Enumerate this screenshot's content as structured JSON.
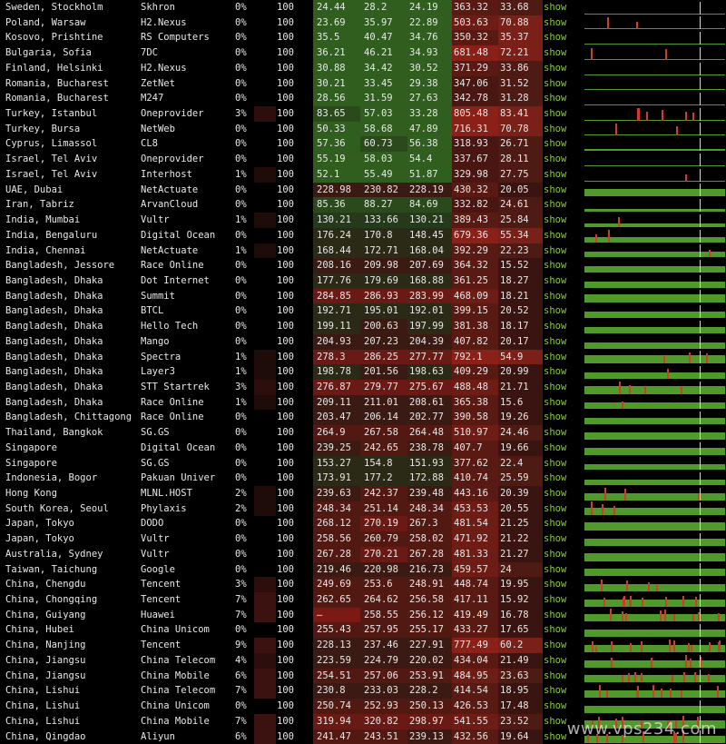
{
  "colors": {
    "show_link": "#8ccc3a",
    "graph_green": "#4f9a2a",
    "spike_red": "#d23a2a",
    "spike_yellow": "#e8d8a0"
  },
  "watermark": "www.vps234.com",
  "rows": [
    {
      "location": "Sweden, Stockholm",
      "isp": "Skhron",
      "loss": "0%",
      "sent": "100",
      "last": "24.44",
      "avg": "28.2",
      "best": "24.19",
      "worst": "363.32",
      "stdev": "33.68",
      "show": "show",
      "graph_level": 0.05
    },
    {
      "location": "Poland, Warsaw",
      "isp": "H2.Nexus",
      "loss": "0%",
      "sent": "100",
      "last": "23.69",
      "avg": "35.97",
      "best": "22.89",
      "worst": "503.63",
      "stdev": "70.88",
      "show": "show",
      "graph_level": 0.05
    },
    {
      "location": "Kosovo, Prishtine",
      "isp": "RS Computers",
      "loss": "0%",
      "sent": "100",
      "last": "35.5",
      "avg": "40.47",
      "best": "34.76",
      "worst": "350.32",
      "stdev": "35.37",
      "show": "show",
      "graph_level": 0.07
    },
    {
      "location": "Bulgaria, Sofia",
      "isp": "7DC",
      "loss": "0%",
      "sent": "100",
      "last": "36.21",
      "avg": "46.21",
      "best": "34.93",
      "worst": "681.48",
      "stdev": "72.21",
      "show": "show",
      "graph_level": 0.07
    },
    {
      "location": "Finland, Helsinki",
      "isp": "H2.Nexus",
      "loss": "0%",
      "sent": "100",
      "last": "30.88",
      "avg": "34.42",
      "best": "30.52",
      "worst": "371.29",
      "stdev": "33.86",
      "show": "show",
      "graph_level": 0.06
    },
    {
      "location": "Romania, Bucharest",
      "isp": "ZetNet",
      "loss": "0%",
      "sent": "100",
      "last": "30.21",
      "avg": "33.45",
      "best": "29.38",
      "worst": "347.06",
      "stdev": "31.52",
      "show": "show",
      "graph_level": 0.06
    },
    {
      "location": "Romania, Bucharest",
      "isp": "M247",
      "loss": "0%",
      "sent": "100",
      "last": "28.56",
      "avg": "31.59",
      "best": "27.63",
      "worst": "342.78",
      "stdev": "31.28",
      "show": "show",
      "graph_level": 0.06
    },
    {
      "location": "Turkey, Istanbul",
      "isp": "Oneprovider",
      "loss": "3%",
      "sent": "100",
      "last": "83.65",
      "avg": "57.03",
      "best": "33.28",
      "worst": "805.48",
      "stdev": "83.41",
      "show": "show",
      "graph_level": 0.1
    },
    {
      "location": "Turkey, Bursa",
      "isp": "NetWeb",
      "loss": "0%",
      "sent": "100",
      "last": "50.33",
      "avg": "58.68",
      "best": "47.89",
      "worst": "716.31",
      "stdev": "70.78",
      "show": "show",
      "graph_level": 0.1
    },
    {
      "location": "Cyprus, Limassol",
      "isp": "CL8",
      "loss": "0%",
      "sent": "100",
      "last": "57.36",
      "avg": "60.73",
      "best": "56.38",
      "worst": "318.93",
      "stdev": "26.71",
      "show": "show",
      "graph_level": 0.11
    },
    {
      "location": "Israel, Tel Aviv",
      "isp": "Oneprovider",
      "loss": "0%",
      "sent": "100",
      "last": "55.19",
      "avg": "58.03",
      "best": "54.4",
      "worst": "337.67",
      "stdev": "28.11",
      "show": "show",
      "graph_level": 0.1
    },
    {
      "location": "Israel, Tel Aviv",
      "isp": "Interhost",
      "loss": "1%",
      "sent": "100",
      "last": "52.1",
      "avg": "55.49",
      "best": "51.87",
      "worst": "329.98",
      "stdev": "27.75",
      "show": "show",
      "graph_level": 0.1
    },
    {
      "location": "UAE, Dubai",
      "isp": "NetActuate",
      "loss": "0%",
      "sent": "100",
      "last": "228.98",
      "avg": "230.82",
      "best": "228.19",
      "worst": "430.32",
      "stdev": "20.05",
      "show": "show",
      "graph_level": 0.55
    },
    {
      "location": "Iran, Tabriz",
      "isp": "ArvanCloud",
      "loss": "0%",
      "sent": "100",
      "last": "85.36",
      "avg": "88.27",
      "best": "84.69",
      "worst": "332.82",
      "stdev": "24.61",
      "show": "show",
      "graph_level": 0.18
    },
    {
      "location": "India, Mumbai",
      "isp": "Vultr",
      "loss": "1%",
      "sent": "100",
      "last": "130.21",
      "avg": "133.66",
      "best": "130.21",
      "worst": "389.43",
      "stdev": "25.84",
      "show": "show",
      "graph_level": 0.3
    },
    {
      "location": "India, Bengaluru",
      "isp": "Digital Ocean",
      "loss": "0%",
      "sent": "100",
      "last": "176.24",
      "avg": "170.8",
      "best": "148.45",
      "worst": "679.36",
      "stdev": "55.34",
      "show": "show",
      "graph_level": 0.4
    },
    {
      "location": "India, Chennai",
      "isp": "NetActuate",
      "loss": "1%",
      "sent": "100",
      "last": "168.44",
      "avg": "172.71",
      "best": "168.04",
      "worst": "392.29",
      "stdev": "22.23",
      "show": "show",
      "graph_level": 0.4
    },
    {
      "location": "Bangladesh, Jessore",
      "isp": "Race Online",
      "loss": "0%",
      "sent": "100",
      "last": "208.16",
      "avg": "209.98",
      "best": "207.69",
      "worst": "364.32",
      "stdev": "15.52",
      "show": "show",
      "graph_level": 0.5
    },
    {
      "location": "Bangladesh, Dhaka",
      "isp": "Dot Internet",
      "loss": "0%",
      "sent": "100",
      "last": "177.76",
      "avg": "179.69",
      "best": "168.88",
      "worst": "361.25",
      "stdev": "18.27",
      "show": "show",
      "graph_level": 0.45
    },
    {
      "location": "Bangladesh, Dhaka",
      "isp": "Summit",
      "loss": "0%",
      "sent": "100",
      "last": "284.85",
      "avg": "286.93",
      "best": "283.99",
      "worst": "468.09",
      "stdev": "18.21",
      "show": "show",
      "graph_level": 0.6
    },
    {
      "location": "Bangladesh, Dhaka",
      "isp": "BTCL",
      "loss": "0%",
      "sent": "100",
      "last": "192.71",
      "avg": "195.01",
      "best": "192.01",
      "worst": "399.15",
      "stdev": "20.52",
      "show": "show",
      "graph_level": 0.48
    },
    {
      "location": "Bangladesh, Dhaka",
      "isp": "Hello Tech",
      "loss": "0%",
      "sent": "100",
      "last": "199.11",
      "avg": "200.63",
      "best": "197.99",
      "worst": "381.38",
      "stdev": "18.17",
      "show": "show",
      "graph_level": 0.5
    },
    {
      "location": "Bangladesh, Dhaka",
      "isp": "Mango",
      "loss": "0%",
      "sent": "100",
      "last": "204.93",
      "avg": "207.23",
      "best": "204.39",
      "worst": "407.82",
      "stdev": "20.17",
      "show": "show",
      "graph_level": 0.5
    },
    {
      "location": "Bangladesh, Dhaka",
      "isp": "Spectra",
      "loss": "1%",
      "sent": "100",
      "last": "278.3",
      "avg": "286.25",
      "best": "277.77",
      "worst": "792.1",
      "stdev": "54.9",
      "show": "show",
      "graph_level": 0.6
    },
    {
      "location": "Bangladesh, Dhaka",
      "isp": "Layer3",
      "loss": "1%",
      "sent": "100",
      "last": "198.78",
      "avg": "201.56",
      "best": "198.63",
      "worst": "409.29",
      "stdev": "20.99",
      "show": "show",
      "graph_level": 0.5
    },
    {
      "location": "Bangladesh, Dhaka",
      "isp": "STT Startrek",
      "loss": "3%",
      "sent": "100",
      "last": "276.87",
      "avg": "279.77",
      "best": "275.67",
      "worst": "488.48",
      "stdev": "21.71",
      "show": "show",
      "graph_level": 0.6
    },
    {
      "location": "Bangladesh, Dhaka",
      "isp": "Race Online",
      "loss": "1%",
      "sent": "100",
      "last": "209.11",
      "avg": "211.01",
      "best": "208.61",
      "worst": "365.38",
      "stdev": "15.6",
      "show": "show",
      "graph_level": 0.5
    },
    {
      "location": "Bangladesh, Chittagong",
      "isp": "Race Online",
      "loss": "0%",
      "sent": "100",
      "last": "203.47",
      "avg": "206.14",
      "best": "202.77",
      "worst": "390.58",
      "stdev": "19.26",
      "show": "show",
      "graph_level": 0.5
    },
    {
      "location": "Thailand, Bangkok",
      "isp": "SG.GS",
      "loss": "0%",
      "sent": "100",
      "last": "264.9",
      "avg": "267.58",
      "best": "264.48",
      "worst": "510.97",
      "stdev": "24.46",
      "show": "show",
      "graph_level": 0.55
    },
    {
      "location": "Singapore",
      "isp": "Digital Ocean",
      "loss": "0%",
      "sent": "100",
      "last": "239.25",
      "avg": "242.65",
      "best": "238.78",
      "worst": "407.7",
      "stdev": "19.66",
      "show": "show",
      "graph_level": 0.55
    },
    {
      "location": "Singapore",
      "isp": "SG.GS",
      "loss": "0%",
      "sent": "100",
      "last": "153.27",
      "avg": "154.8",
      "best": "151.93",
      "worst": "377.62",
      "stdev": "22.4",
      "show": "show",
      "graph_level": 0.38
    },
    {
      "location": "Indonesia, Bogor",
      "isp": "Pakuan Univer",
      "loss": "0%",
      "sent": "100",
      "last": "173.91",
      "avg": "177.2",
      "best": "172.88",
      "worst": "410.74",
      "stdev": "25.59",
      "show": "show",
      "graph_level": 0.42
    },
    {
      "location": "Hong Kong",
      "isp": "MLNL.HOST",
      "loss": "2%",
      "sent": "100",
      "last": "239.63",
      "avg": "242.37",
      "best": "239.48",
      "worst": "443.16",
      "stdev": "20.39",
      "show": "show",
      "graph_level": 0.55
    },
    {
      "location": "South Korea, Seoul",
      "isp": "Phylaxis",
      "loss": "2%",
      "sent": "100",
      "last": "248.34",
      "avg": "251.14",
      "best": "248.34",
      "worst": "453.53",
      "stdev": "20.55",
      "show": "show",
      "graph_level": 0.55
    },
    {
      "location": "Japan, Tokyo",
      "isp": "DODO",
      "loss": "0%",
      "sent": "100",
      "last": "268.12",
      "avg": "270.19",
      "best": "267.3",
      "worst": "481.54",
      "stdev": "21.25",
      "show": "show",
      "graph_level": 0.58
    },
    {
      "location": "Japan, Tokyo",
      "isp": "Vultr",
      "loss": "0%",
      "sent": "100",
      "last": "258.56",
      "avg": "260.79",
      "best": "258.02",
      "worst": "471.92",
      "stdev": "21.22",
      "show": "show",
      "graph_level": 0.57
    },
    {
      "location": "Australia, Sydney",
      "isp": "Vultr",
      "loss": "0%",
      "sent": "100",
      "last": "267.28",
      "avg": "270.21",
      "best": "267.28",
      "worst": "481.33",
      "stdev": "21.27",
      "show": "show",
      "graph_level": 0.58
    },
    {
      "location": "Taiwan, Taichung",
      "isp": "Google",
      "loss": "0%",
      "sent": "100",
      "last": "219.46",
      "avg": "220.98",
      "best": "216.73",
      "worst": "459.57",
      "stdev": "24",
      "show": "show",
      "graph_level": 0.52
    },
    {
      "location": "China, Chengdu",
      "isp": "Tencent",
      "loss": "3%",
      "sent": "100",
      "last": "249.69",
      "avg": "253.6",
      "best": "248.91",
      "worst": "448.74",
      "stdev": "19.95",
      "show": "show",
      "graph_level": 0.55
    },
    {
      "location": "China, Chongqing",
      "isp": "Tencent",
      "loss": "7%",
      "sent": "100",
      "last": "262.65",
      "avg": "264.62",
      "best": "256.58",
      "worst": "417.11",
      "stdev": "15.92",
      "show": "show",
      "graph_level": 0.55
    },
    {
      "location": "China, Guiyang",
      "isp": "Huawei",
      "loss": "7%",
      "sent": "100",
      "last": "–",
      "avg": "258.55",
      "best": "256.12",
      "worst": "419.49",
      "stdev": "16.78",
      "show": "show",
      "graph_level": 0.55
    },
    {
      "location": "China, Hubei",
      "isp": "China Unicom",
      "loss": "0%",
      "sent": "100",
      "last": "255.43",
      "avg": "257.95",
      "best": "255.17",
      "worst": "433.27",
      "stdev": "17.65",
      "show": "show",
      "graph_level": 0.55
    },
    {
      "location": "China, Nanjing",
      "isp": "Tencent",
      "loss": "9%",
      "sent": "100",
      "last": "228.13",
      "avg": "237.46",
      "best": "227.91",
      "worst": "777.49",
      "stdev": "60.2",
      "show": "show",
      "graph_level": 0.55
    },
    {
      "location": "China, Jiangsu",
      "isp": "China Telecom",
      "loss": "4%",
      "sent": "100",
      "last": "223.59",
      "avg": "224.79",
      "best": "220.02",
      "worst": "434.04",
      "stdev": "21.49",
      "show": "show",
      "graph_level": 0.52
    },
    {
      "location": "China, Jiangsu",
      "isp": "China Mobile",
      "loss": "6%",
      "sent": "100",
      "last": "254.51",
      "avg": "257.06",
      "best": "253.91",
      "worst": "484.95",
      "stdev": "23.63",
      "show": "show",
      "graph_level": 0.55
    },
    {
      "location": "China, Lishui",
      "isp": "China Telecom",
      "loss": "7%",
      "sent": "100",
      "last": "230.8",
      "avg": "233.03",
      "best": "228.2",
      "worst": "414.54",
      "stdev": "18.95",
      "show": "show",
      "graph_level": 0.52
    },
    {
      "location": "China, Lishui",
      "isp": "China Unicom",
      "loss": "0%",
      "sent": "100",
      "last": "250.74",
      "avg": "252.93",
      "best": "250.13",
      "worst": "426.53",
      "stdev": "17.48",
      "show": "show",
      "graph_level": 0.55
    },
    {
      "location": "China, Lishui",
      "isp": "China Mobile",
      "loss": "7%",
      "sent": "100",
      "last": "319.94",
      "avg": "320.82",
      "best": "298.97",
      "worst": "541.55",
      "stdev": "23.52",
      "show": "show",
      "graph_level": 0.62
    },
    {
      "location": "China, Qingdao",
      "isp": "Aliyun",
      "loss": "6%",
      "sent": "100",
      "last": "241.47",
      "avg": "243.51",
      "best": "239.13",
      "worst": "432.56",
      "stdev": "19.64",
      "show": "show",
      "graph_level": 0.55
    }
  ]
}
